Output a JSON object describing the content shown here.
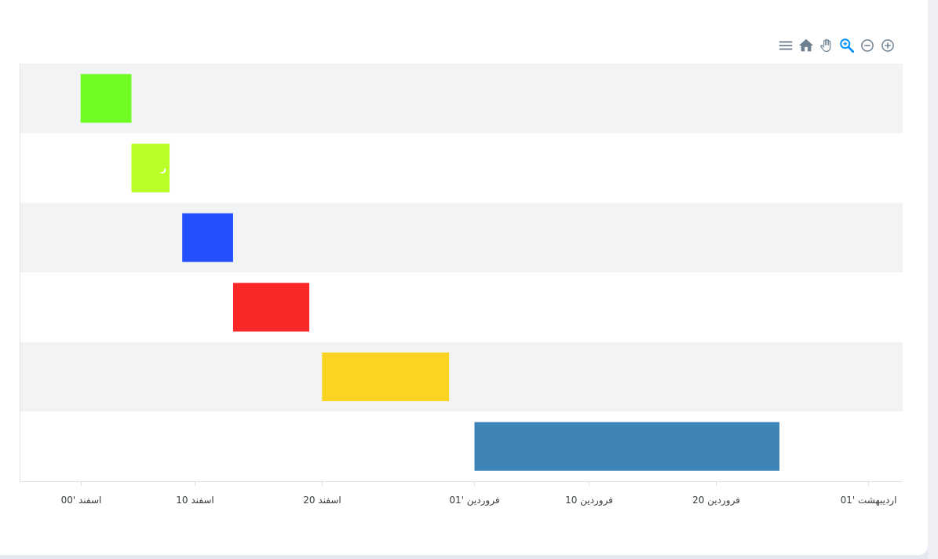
{
  "toolbar": {
    "icons": [
      "zoom-in-icon",
      "zoom-out-icon",
      "zoom-selection-icon",
      "pan-icon",
      "reset-home-icon",
      "menu-icon"
    ],
    "active_color": "#008ffb",
    "color": "#6e8192"
  },
  "chart_data": {
    "type": "rangeBar",
    "orientation": "horizontal",
    "x_axis": {
      "ticks": [
        {
          "label": "اسفند '00",
          "day": 0
        },
        {
          "label": "10 اسفند",
          "day": 9
        },
        {
          "label": "20 اسفند",
          "day": 19
        },
        {
          "label": "فروردین '01",
          "day": 31
        },
        {
          "label": "10 فروردین",
          "day": 40
        },
        {
          "label": "20 فروردین",
          "day": 50
        },
        {
          "label": "اردیبهشت '01",
          "day": 62
        }
      ],
      "range": [
        -4.8,
        64.7
      ]
    },
    "rows": [
      {
        "start": 0,
        "end": 4,
        "color": "#6ffb24",
        "label": ""
      },
      {
        "start": 4,
        "end": 7,
        "color": "#bbff28",
        "label": "ر"
      },
      {
        "start": 8,
        "end": 12,
        "color": "#2450fb",
        "label": ""
      },
      {
        "start": 12,
        "end": 18,
        "color": "#fb2828",
        "label": ""
      },
      {
        "start": 19,
        "end": 29,
        "color": "#f9d423",
        "label": ""
      },
      {
        "start": 31,
        "end": 55,
        "color": "#3f84b7",
        "label": ""
      }
    ],
    "row_band_colors": [
      "#f2f3f5",
      "#ffffff"
    ],
    "grid": false,
    "legend": "none"
  }
}
